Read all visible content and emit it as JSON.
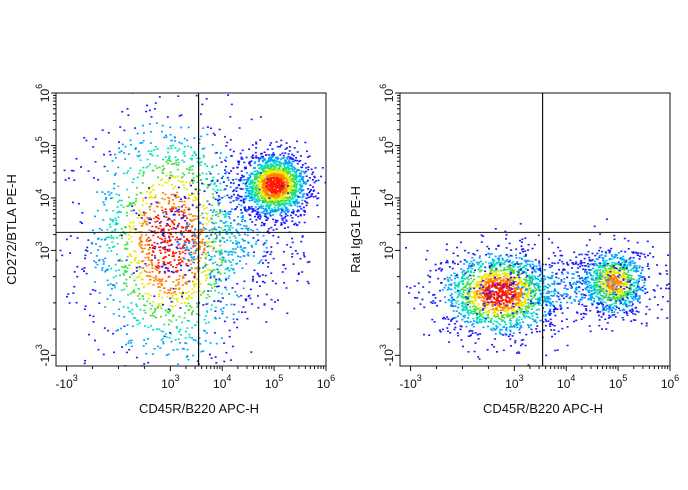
{
  "chart_data": [
    {
      "type": "scatter",
      "subtype": "flow-cytometry-pseudocolor",
      "xlabel": "CD45R/B220 APC-H",
      "ylabel": "CD272/BTLA PE-H",
      "scale": "biexponential",
      "x_ticks": [
        {
          "base": "-10",
          "exp": "3",
          "value": -1000
        },
        {
          "base": "10",
          "exp": "3",
          "value": 1000
        },
        {
          "base": "10",
          "exp": "4",
          "value": 10000
        },
        {
          "base": "10",
          "exp": "5",
          "value": 100000
        },
        {
          "base": "10",
          "exp": "6",
          "value": 1000000
        }
      ],
      "y_ticks": [
        {
          "base": "-10",
          "exp": "3",
          "value": -1000
        },
        {
          "base": "10",
          "exp": "3",
          "value": 1000
        },
        {
          "base": "10",
          "exp": "4",
          "value": 10000
        },
        {
          "base": "10",
          "exp": "5",
          "value": 100000
        },
        {
          "base": "10",
          "exp": "6",
          "value": 1000000
        }
      ],
      "xlim": [
        -1600,
        1000000
      ],
      "ylim": [
        -1600,
        1000000
      ],
      "quadrant_gate": {
        "x": 3500,
        "y": 2200
      },
      "populations": [
        {
          "x_center": 1000,
          "y_center": 1500,
          "x_spread": 0.5,
          "y_spread": 0.75,
          "density": "high"
        },
        {
          "x_center": 100000,
          "y_center": 18000,
          "x_spread": 0.2,
          "y_spread": 0.18,
          "density": "high"
        },
        {
          "x_center": 10000,
          "y_center": 1400,
          "x_spread": 0.5,
          "y_spread": 0.4,
          "density": "low"
        }
      ],
      "grid": false,
      "legend": "none"
    },
    {
      "type": "scatter",
      "subtype": "flow-cytometry-pseudocolor",
      "xlabel": "CD45R/B220 APC-H",
      "ylabel": "Rat IgG1 PE-H",
      "scale": "biexponential",
      "x_ticks": [
        {
          "base": "-10",
          "exp": "3",
          "value": -1000
        },
        {
          "base": "10",
          "exp": "3",
          "value": 1000
        },
        {
          "base": "10",
          "exp": "4",
          "value": 10000
        },
        {
          "base": "10",
          "exp": "5",
          "value": 100000
        },
        {
          "base": "10",
          "exp": "6",
          "value": 1000000
        }
      ],
      "y_ticks": [
        {
          "base": "-10",
          "exp": "3",
          "value": -1000
        },
        {
          "base": "10",
          "exp": "3",
          "value": 1000
        },
        {
          "base": "10",
          "exp": "4",
          "value": 10000
        },
        {
          "base": "10",
          "exp": "5",
          "value": 100000
        },
        {
          "base": "10",
          "exp": "6",
          "value": 1000000
        }
      ],
      "xlim": [
        -1600,
        1000000
      ],
      "ylim": [
        -1600,
        1000000
      ],
      "quadrant_gate": {
        "x": 3500,
        "y": 2200
      },
      "populations": [
        {
          "x_center": 700,
          "y_center": 200,
          "x_spread": 0.35,
          "y_spread": 0.25,
          "density": "high"
        },
        {
          "x_center": 80000,
          "y_center": 400,
          "x_spread": 0.2,
          "y_spread": 0.2,
          "density": "medium"
        },
        {
          "x_center": 10000,
          "y_center": 300,
          "x_spread": 0.6,
          "y_spread": 0.2,
          "density": "low"
        }
      ],
      "grid": false,
      "legend": "none"
    }
  ],
  "colors": {
    "density_scale": [
      "#1a1aff",
      "#00a0ff",
      "#00e0c0",
      "#40e040",
      "#e8e800",
      "#ff8000",
      "#ff1a00"
    ],
    "gate_line": "#111111",
    "frame": "#111111"
  }
}
